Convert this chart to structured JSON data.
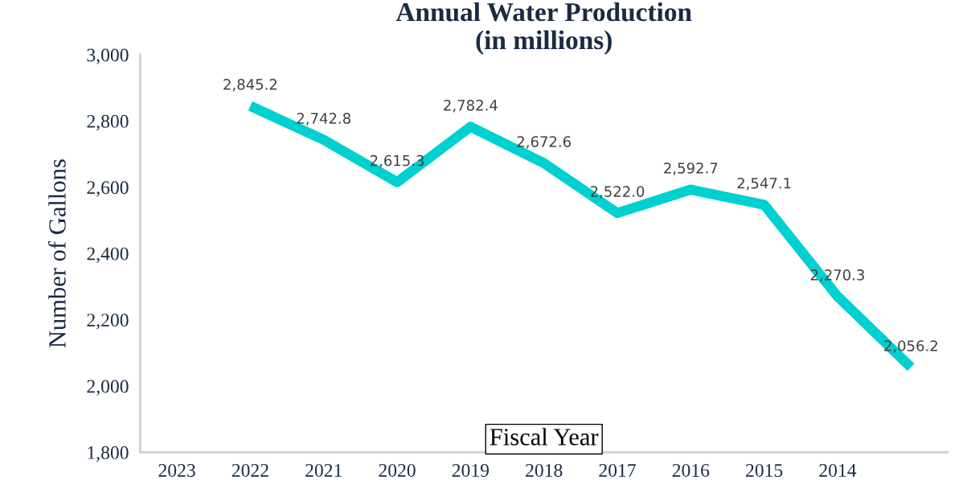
{
  "chart_data": {
    "type": "line",
    "title": "Annual Water Production\n(in millions)",
    "ylabel": "Number of Gallons",
    "xlabel": "Fiscal Year",
    "categories": [
      "2023",
      "2022",
      "2021",
      "2020",
      "2019",
      "2018",
      "2017",
      "2016",
      "2015",
      "2014",
      null
    ],
    "series": [
      {
        "color": "#00d0d0",
        "values": [
          null,
          2845.2,
          2742.8,
          2615.3,
          2782.4,
          2672.6,
          2522.0,
          2592.7,
          2547.1,
          2270.3,
          2056.2
        ],
        "value_labels": [
          null,
          "2,845.2",
          "2,742.8",
          "2,615.3",
          "2,782.4",
          "2,672.6",
          "2,522.0",
          "2,592.7",
          "2,547.1",
          "2,270.3",
          "2,056.2"
        ]
      }
    ],
    "ylim": [
      1800,
      3000
    ],
    "yticks": [
      {
        "value": 1800,
        "label": "1,800"
      },
      {
        "value": 2000,
        "label": "2,000"
      },
      {
        "value": 2200,
        "label": "2,200"
      },
      {
        "value": 2400,
        "label": "2,400"
      },
      {
        "value": 2600,
        "label": "2,600"
      },
      {
        "value": 2800,
        "label": "2,800"
      },
      {
        "value": 3000,
        "label": "3,000"
      }
    ],
    "grid": false,
    "marker": "none"
  }
}
